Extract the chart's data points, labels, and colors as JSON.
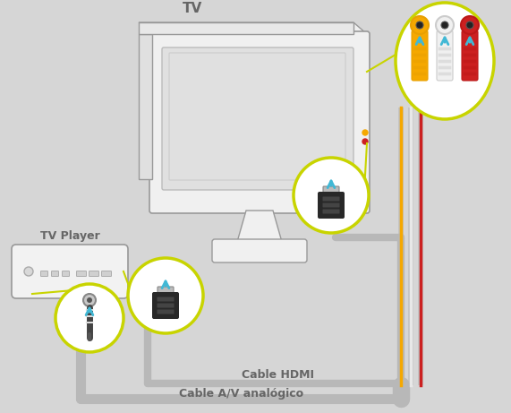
{
  "bg_color": "#d6d6d6",
  "title_tv": "TV",
  "title_tv_player": "TV Player",
  "label_hdmi": "Cable HDMI",
  "label_analog": "Cable A/V analógico",
  "circle_color": "#c8d400",
  "arrow_color": "#41b8d5",
  "tv_body_color": "#f0f0f0",
  "tv_body_edge": "#999999",
  "tv_screen_color": "#e0e0e0",
  "box_color": "#f2f2f2",
  "box_edge": "#999999",
  "connector_yellow": "#f5a800",
  "connector_white": "#f0f0f0",
  "connector_red": "#cc2020",
  "text_color": "#666666",
  "hdmi_color": "#282828",
  "cable_color": "#b8b8b8",
  "cable_lw": 5
}
